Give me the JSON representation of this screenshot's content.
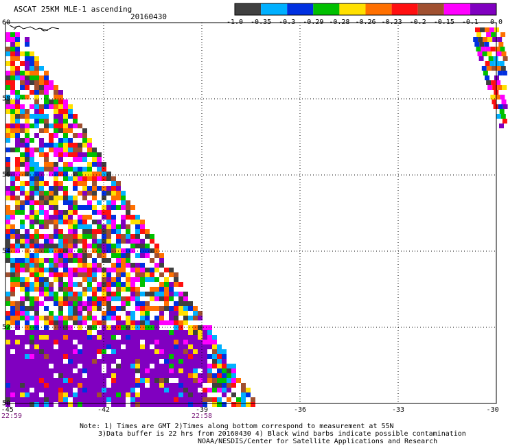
{
  "header": {
    "title": "ASCAT 25KM MLE-1 ascending",
    "date": "20160430"
  },
  "colorbar": {
    "colors": [
      "#404040",
      "#00b0ff",
      "#0030e0",
      "#00c000",
      "#ffe000",
      "#ff7000",
      "#ff1010",
      "#a05030",
      "#ff00ff",
      "#8000c0"
    ],
    "labels": [
      "-1.0",
      "-0.35",
      "-0.3",
      "-0.29",
      "-0.28",
      "-0.26",
      "-0.23",
      "-0.2",
      "-0.15",
      "-0.1",
      "0.0"
    ]
  },
  "map": {
    "lon_min": -45,
    "lon_max": -30,
    "lat_min": 50,
    "lat_max": 60,
    "lat_labels": [
      "60",
      "58",
      "56",
      "54",
      "52",
      "50"
    ],
    "lon_labels": [
      "-45",
      "-42",
      "-39",
      "-36",
      "-33",
      "-30"
    ],
    "time_labels": [
      {
        "text": "22:59",
        "lon": -45
      },
      {
        "text": "22:58",
        "lon": -39
      }
    ]
  },
  "notes": [
    "Note: 1) Times are GMT 2)Times along bottom correspond to measurement at 55N",
    "3)Data buffer is 22 hrs from 20160430 4) Black wind barbs indicate possible contamination",
    "NOAA/NESDIS/Center for Satellite Applications and Research"
  ]
}
